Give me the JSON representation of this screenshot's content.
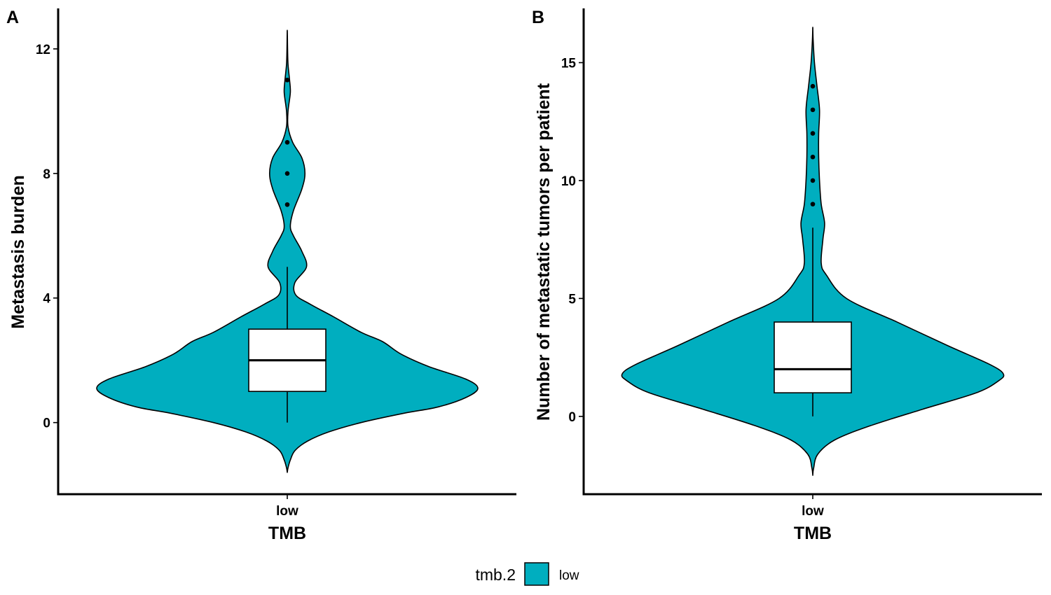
{
  "colors": {
    "fill": "#00AEBF",
    "outline": "#000000",
    "box_fill": "#ffffff"
  },
  "legend": {
    "title": "tmb.2",
    "label": "low",
    "placement": "bottom"
  },
  "chart_data": [
    {
      "type": "violin",
      "panel_label": "A",
      "title": "",
      "xlabel": "TMB",
      "ylabel": "Metastasis burden",
      "categories": [
        "low"
      ],
      "ylim": [
        -2.3,
        13.3
      ],
      "yticks": [
        0,
        4,
        8,
        12
      ],
      "grid": false,
      "violin": {
        "density": [
          [
            -1.6,
            0.0
          ],
          [
            -1.45,
            0.05
          ],
          [
            -1.2,
            0.2
          ],
          [
            -0.9,
            0.5
          ],
          [
            -0.6,
            1.3
          ],
          [
            -0.3,
            2.7
          ],
          [
            0.0,
            4.8
          ],
          [
            0.3,
            7.6
          ],
          [
            0.5,
            9.8
          ],
          [
            0.8,
            11.6
          ],
          [
            1.1,
            12.4
          ],
          [
            1.4,
            11.6
          ],
          [
            1.8,
            9.2
          ],
          [
            2.2,
            7.4
          ],
          [
            2.6,
            6.2
          ],
          [
            2.9,
            4.8
          ],
          [
            3.4,
            3.0
          ],
          [
            3.8,
            1.5
          ],
          [
            4.1,
            0.55
          ],
          [
            4.5,
            0.5
          ],
          [
            5.0,
            1.25
          ],
          [
            5.5,
            0.95
          ],
          [
            6.0,
            0.4
          ],
          [
            6.3,
            0.2
          ],
          [
            6.8,
            0.4
          ],
          [
            7.5,
            0.95
          ],
          [
            8.0,
            1.15
          ],
          [
            8.5,
            0.95
          ],
          [
            9.0,
            0.35
          ],
          [
            9.5,
            0.05
          ],
          [
            10.0,
            0.05
          ],
          [
            10.6,
            0.2
          ],
          [
            11.0,
            0.15
          ],
          [
            11.5,
            0.05
          ],
          [
            12.0,
            0.02
          ],
          [
            12.6,
            0.0
          ]
        ]
      },
      "box": {
        "lower_whisker": 0,
        "q1": 1,
        "median": 2,
        "q3": 3,
        "upper_whisker": 5
      },
      "outliers": [
        7,
        8,
        9,
        11
      ]
    },
    {
      "type": "violin",
      "panel_label": "B",
      "title": "",
      "xlabel": "TMB",
      "ylabel": "Number of metastatic tumors per patient",
      "categories": [
        "low"
      ],
      "ylim": [
        -3.3,
        17.3
      ],
      "yticks": [
        0,
        5,
        10,
        15
      ],
      "grid": false,
      "violin": {
        "density": [
          [
            -2.5,
            0.0
          ],
          [
            -2.2,
            0.05
          ],
          [
            -1.6,
            0.3
          ],
          [
            -1.0,
            1.3
          ],
          [
            -0.4,
            3.4
          ],
          [
            0.3,
            6.5
          ],
          [
            1.0,
            9.7
          ],
          [
            1.5,
            11.0
          ],
          [
            1.8,
            11.3
          ],
          [
            2.2,
            10.5
          ],
          [
            3.0,
            8.0
          ],
          [
            4.0,
            5.0
          ],
          [
            5.0,
            2.0
          ],
          [
            6.0,
            0.8
          ],
          [
            6.5,
            0.5
          ],
          [
            7.5,
            0.6
          ],
          [
            8.2,
            0.7
          ],
          [
            9.0,
            0.5
          ],
          [
            10.0,
            0.4
          ],
          [
            11.0,
            0.35
          ],
          [
            12.0,
            0.35
          ],
          [
            13.0,
            0.4
          ],
          [
            14.0,
            0.25
          ],
          [
            15.0,
            0.1
          ],
          [
            16.0,
            0.02
          ],
          [
            16.5,
            0.0
          ]
        ]
      },
      "box": {
        "lower_whisker": 0,
        "q1": 1,
        "median": 2,
        "q3": 4,
        "upper_whisker": 8
      },
      "outliers": [
        9,
        10,
        11,
        12,
        13,
        14
      ]
    }
  ]
}
